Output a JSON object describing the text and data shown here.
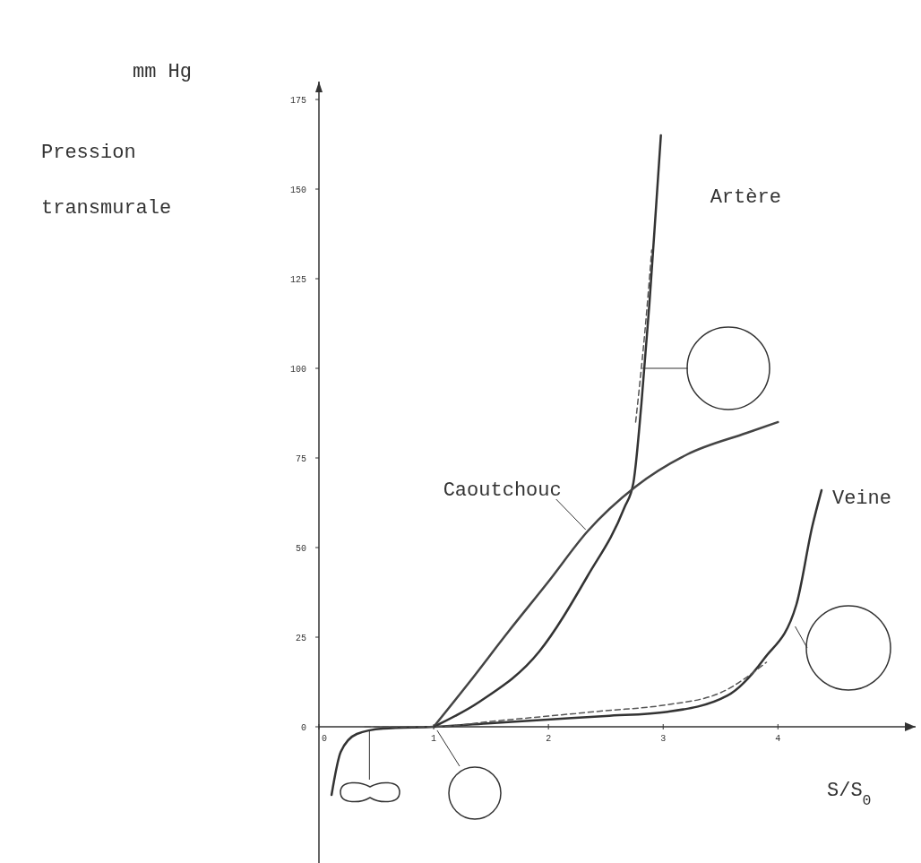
{
  "chart_data": {
    "type": "line",
    "ylabel": "Pression transmurale",
    "xlabel": "S/S$_{0}$",
    "annotations": [
      "mm Hg"
    ],
    "xlim": [
      0,
      5.2
    ],
    "ylim": [
      -38,
      180
    ],
    "xticks": [
      0,
      1,
      2,
      3,
      4
    ],
    "yticks": [
      0,
      25,
      50,
      75,
      100,
      125,
      150,
      175
    ],
    "grid": false,
    "series": [
      {
        "name": "Artère",
        "color": "#333333",
        "x": [
          1,
          1.4,
          1.92,
          2.34,
          2.66,
          2.74,
          2.81,
          2.88,
          2.94,
          2.98
        ],
        "values": [
          0,
          7,
          21,
          42,
          61,
          68,
          90,
          118,
          146,
          165
        ]
      },
      {
        "name": "Caoutchouc",
        "color": "#444444",
        "x": [
          1,
          1.3,
          1.65,
          2.0,
          2.34,
          2.76,
          3.21,
          3.73,
          4.0
        ],
        "values": [
          0,
          12,
          26.5,
          40.5,
          54.5,
          67,
          76,
          82,
          85
        ]
      },
      {
        "name": "Veine",
        "color": "#333333",
        "x": [
          0.11,
          0.19,
          0.33,
          0.56,
          1,
          1.5,
          1.99,
          2.5,
          3.04,
          3.56,
          3.88,
          4.16,
          4.3,
          4.38
        ],
        "values": [
          -19,
          -7,
          -2,
          -0.5,
          0,
          1,
          2,
          3,
          4.2,
          8.7,
          19,
          34,
          56,
          66
        ]
      },
      {
        "color": "#555555",
        "line_style": "dashed",
        "x": [
          2.76,
          2.8,
          2.84,
          2.88,
          2.9
        ],
        "values": [
          85,
          97,
          110,
          125,
          133
        ]
      },
      {
        "color": "#555555",
        "line_style": "dashed",
        "x": [
          0.4,
          1,
          1.5,
          2,
          2.5,
          3,
          3.5,
          3.9
        ],
        "values": [
          0,
          0,
          1.5,
          3,
          4.5,
          6,
          9.5,
          18
        ]
      }
    ]
  }
}
